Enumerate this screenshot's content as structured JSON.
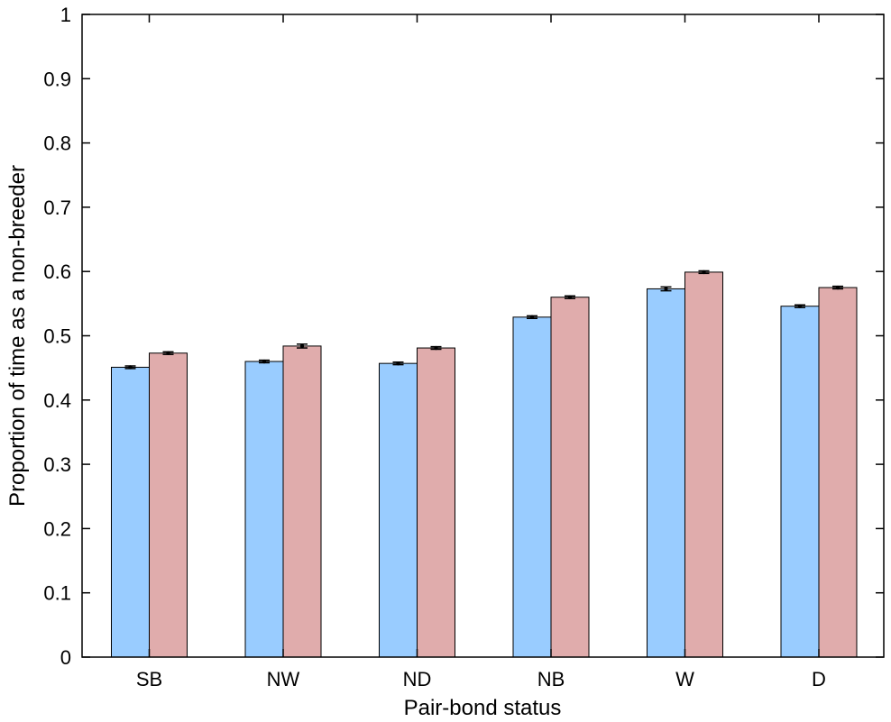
{
  "chart_data": {
    "type": "bar",
    "categories": [
      "SB",
      "NW",
      "ND",
      "NB",
      "W",
      "D"
    ],
    "series": [
      {
        "values": [
          0.451,
          0.46,
          0.457,
          0.529,
          0.573,
          0.546
        ],
        "errors": [
          0.002,
          0.002,
          0.002,
          0.002,
          0.003,
          0.002
        ],
        "color": "#99ccff"
      },
      {
        "values": [
          0.473,
          0.484,
          0.481,
          0.56,
          0.599,
          0.575
        ],
        "errors": [
          0.002,
          0.003,
          0.002,
          0.002,
          0.002,
          0.002
        ],
        "color": "#e0acac"
      }
    ],
    "title": "",
    "xlabel": "Pair-bond status",
    "ylabel": "Proportion of time as a non-breeder",
    "ylim": [
      0,
      1
    ],
    "yticks": [
      "0",
      "0.1",
      "0.2",
      "0.3",
      "0.4",
      "0.5",
      "0.6",
      "0.7",
      "0.8",
      "0.9",
      "1"
    ],
    "grid": false,
    "legend": "none"
  }
}
